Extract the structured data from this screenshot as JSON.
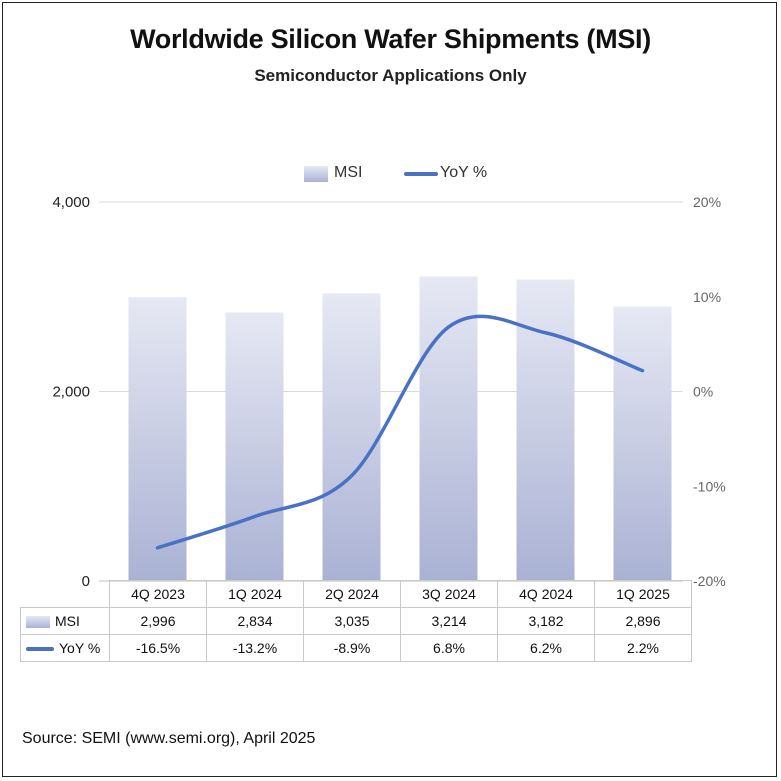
{
  "title": "Worldwide Silicon Wafer Shipments (MSI)",
  "subtitle": "Semiconductor Applications Only",
  "source": "Source: SEMI (www.semi.org), April 2025",
  "colors": {
    "bar_top": "#e6e8f3",
    "bar_bottom": "#aab2d4",
    "line": "#4a72c4",
    "grid": "#d9d9d9"
  },
  "chart_data": {
    "type": "bar",
    "title": "Worldwide Silicon Wafer Shipments (MSI)",
    "subtitle": "Semiconductor Applications Only",
    "categories": [
      "4Q 2023",
      "1Q 2024",
      "2Q 2024",
      "3Q 2024",
      "4Q 2024",
      "1Q 2025"
    ],
    "series": [
      {
        "name": "MSI",
        "type": "bar",
        "axis": "left",
        "values": [
          2996,
          2834,
          3035,
          3214,
          3182,
          2896
        ]
      },
      {
        "name": "YoY %",
        "type": "line",
        "axis": "right",
        "values": [
          -16.5,
          -13.2,
          -8.9,
          6.8,
          6.2,
          2.2
        ]
      }
    ],
    "ylim": [
      0,
      4000
    ],
    "y_ticks": [
      0,
      2000,
      4000
    ],
    "y_tick_labels": [
      "0",
      "2,000",
      "4,000"
    ],
    "y2lim": [
      -20,
      20
    ],
    "y2_ticks": [
      -20,
      -10,
      0,
      10,
      20
    ],
    "y2_tick_labels": [
      "-20%",
      "-10%",
      "0%",
      "10%",
      "20%"
    ],
    "legend": {
      "position": "top",
      "entries": [
        "MSI",
        "YoY %"
      ]
    },
    "grid": "horizontal at left-axis ticks",
    "data_table": {
      "rows": [
        {
          "label": "MSI",
          "values": [
            "2,996",
            "2,834",
            "3,035",
            "3,214",
            "3,182",
            "2,896"
          ]
        },
        {
          "label": "YoY %",
          "values": [
            "-16.5%",
            "-13.2%",
            "-8.9%",
            "6.8%",
            "6.2%",
            "2.2%"
          ]
        }
      ]
    }
  }
}
